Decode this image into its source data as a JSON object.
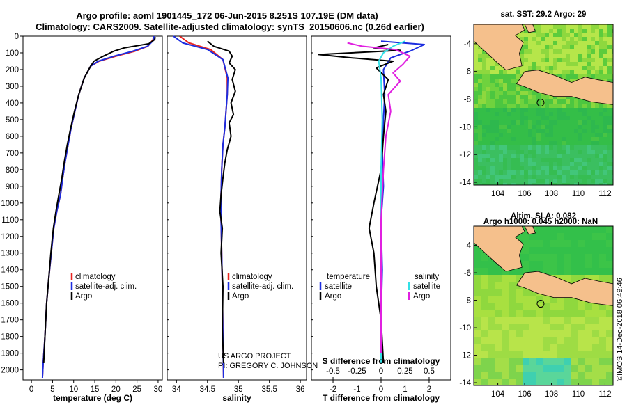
{
  "title_line1": "Argo profile: aoml 1901445_172 06-Jun-2015 8.251S 107.19E (DM data)",
  "title_line2": "Climatology: CARS2009. Satellite-adjusted climatology: synTS_20150606.nc (0.26d earlier)",
  "credit_project": "US ARGO PROJECT",
  "credit_pi": "PI: GREGORY C. JOHNSON",
  "footer": "©IMOS 14-Dec-2018 06:49:46",
  "colors": {
    "climatology": "#e8231f",
    "satellite_adj": "#1c2de0",
    "argo": "#000000",
    "salinity_sat": "#33e0e6",
    "salinity_argo": "#e020e0",
    "land": "#f5c08c",
    "sea_green": "#33c24a",
    "sea_yellow": "#b6e64a",
    "sea_cyan": "#3fd0b0"
  },
  "chart_data": [
    {
      "type": "line",
      "panel": "temperature",
      "xlabel": "temperature (deg C)",
      "ylabel": "",
      "xlim": [
        -2,
        31
      ],
      "ylim": [
        2060,
        0
      ],
      "x_ticks": [
        0,
        5,
        10,
        15,
        20,
        25,
        30
      ],
      "y_ticks": [
        0,
        100,
        200,
        300,
        400,
        500,
        600,
        700,
        800,
        900,
        1000,
        1100,
        1200,
        1300,
        1400,
        1500,
        1600,
        1700,
        1800,
        1900,
        2000
      ],
      "legend": [
        "climatology",
        "satellite-adj. clim.",
        "Argo"
      ],
      "series": [
        {
          "name": "climatology",
          "color": "#e8231f",
          "x": [
            28.9,
            28.8,
            27.6,
            24.5,
            20.0,
            16.0,
            14.0,
            12.5,
            11.2,
            10.3,
            9.4,
            8.7,
            8.0,
            7.4,
            6.9,
            6.0,
            5.3,
            4.7,
            4.1,
            3.6,
            3.2,
            2.8,
            2.6
          ],
          "y": [
            0,
            20,
            60,
            90,
            120,
            150,
            180,
            250,
            350,
            450,
            550,
            650,
            750,
            850,
            950,
            1050,
            1150,
            1300,
            1450,
            1600,
            1800,
            1950,
            2050
          ]
        },
        {
          "name": "satellite-adj. clim.",
          "color": "#1c2de0",
          "x": [
            29.0,
            28.9,
            27.5,
            24.0,
            19.5,
            15.8,
            14.0,
            12.5,
            11.2,
            10.3,
            9.4,
            8.7,
            8.0,
            7.4,
            6.9,
            6.0,
            5.3,
            4.7,
            4.1,
            3.6,
            3.2,
            2.8,
            2.6
          ],
          "y": [
            0,
            25,
            60,
            90,
            120,
            150,
            180,
            250,
            350,
            450,
            550,
            650,
            750,
            850,
            950,
            1050,
            1150,
            1300,
            1450,
            1600,
            1800,
            1950,
            2050
          ]
        },
        {
          "name": "Argo",
          "color": "#000000",
          "x": [
            29.3,
            29.2,
            27.8,
            22.0,
            19.5,
            17.0,
            14.8,
            14.0,
            12.5,
            11.2,
            10.2,
            9.3,
            8.5,
            7.8,
            7.2,
            6.5,
            5.8,
            5.2,
            4.6,
            4.1,
            3.6,
            3.2,
            2.9
          ],
          "y": [
            5,
            20,
            45,
            70,
            90,
            120,
            150,
            180,
            250,
            350,
            450,
            550,
            650,
            750,
            850,
            950,
            1050,
            1150,
            1300,
            1450,
            1600,
            1800,
            1960
          ]
        }
      ]
    },
    {
      "type": "line",
      "panel": "salinity",
      "xlabel": "salinity",
      "xlim": [
        33.85,
        36.1
      ],
      "ylim": [
        2060,
        0
      ],
      "x_ticks": [
        34,
        34.5,
        35,
        35.5,
        36
      ],
      "legend": [
        "climatology",
        "satellite-adj. clim.",
        "Argo"
      ],
      "series": [
        {
          "name": "climatology",
          "color": "#e8231f",
          "x": [
            34.05,
            34.2,
            34.55,
            34.75,
            34.82,
            34.82,
            34.8,
            34.78,
            34.75,
            34.73,
            34.72,
            34.72,
            34.73,
            34.74,
            34.75,
            34.76
          ],
          "y": [
            0,
            40,
            80,
            140,
            250,
            350,
            450,
            550,
            650,
            800,
            950,
            1100,
            1300,
            1500,
            1800,
            2050
          ]
        },
        {
          "name": "satellite-adj. clim.",
          "color": "#1c2de0",
          "x": [
            33.95,
            34.1,
            34.5,
            34.75,
            34.83,
            34.82,
            34.8,
            34.78,
            34.75,
            34.73,
            34.72,
            34.72,
            34.73,
            34.74,
            34.75,
            34.76
          ],
          "y": [
            0,
            40,
            80,
            140,
            250,
            350,
            450,
            550,
            650,
            800,
            950,
            1100,
            1300,
            1500,
            1800,
            2050
          ]
        },
        {
          "name": "Argo",
          "color": "#000000",
          "x": [
            34.5,
            34.6,
            34.85,
            34.9,
            34.85,
            34.95,
            34.9,
            34.95,
            34.88,
            34.92,
            34.85,
            34.88,
            34.82,
            34.78,
            34.75,
            34.72,
            34.7,
            34.74,
            34.72,
            34.75,
            34.74,
            34.76
          ],
          "y": [
            30,
            60,
            90,
            120,
            160,
            200,
            260,
            330,
            400,
            470,
            520,
            600,
            680,
            760,
            850,
            950,
            1050,
            1150,
            1300,
            1500,
            1750,
            1960
          ]
        }
      ]
    },
    {
      "type": "line",
      "panel": "difference",
      "xlabel": "T difference from climatology",
      "secondary_xlabel": "S difference from climatology",
      "xlim": [
        -2.9,
        2.9
      ],
      "ylim": [
        2060,
        0
      ],
      "x_ticks": [
        -2,
        -1,
        0,
        1,
        2
      ],
      "secondary_x_ticks": [
        "-0.5",
        "-0.25",
        "0",
        "0.25",
        "0.5"
      ],
      "legend_left_title": "temperature",
      "legend_right_title": "salinity",
      "legend_left": [
        "satellite",
        "Argo"
      ],
      "legend_right": [
        "satellite",
        "Argo"
      ],
      "series": [
        {
          "name": "temperature satellite",
          "color": "#1c2de0",
          "x": [
            0.0,
            1.8,
            1.2,
            0.4,
            0.1,
            0.15,
            0.1,
            0.05,
            0.1,
            0.0,
            0.05,
            0.0,
            0.0
          ],
          "y": [
            30,
            50,
            90,
            130,
            200,
            350,
            500,
            700,
            900,
            1100,
            1400,
            1700,
            1960
          ]
        },
        {
          "name": "temperature Argo",
          "color": "#000000",
          "x": [
            0.3,
            -0.3,
            0.8,
            -2.6,
            -1.2,
            0.5,
            -0.2,
            0.3,
            0.1,
            0.2,
            0.1,
            0.0,
            -0.3,
            -0.5,
            -0.3,
            -0.2,
            0.0,
            0.1
          ],
          "y": [
            50,
            70,
            85,
            110,
            130,
            150,
            190,
            260,
            350,
            450,
            600,
            800,
            1000,
            1150,
            1300,
            1500,
            1700,
            1960
          ]
        },
        {
          "name": "salinity satellite",
          "color": "#33e0e6",
          "x": [
            1.0,
            0.5,
            0.1,
            -0.1,
            0.0,
            0.05,
            0.0,
            0.0,
            0.0,
            0.0
          ],
          "y": [
            30,
            60,
            100,
            150,
            250,
            500,
            800,
            1100,
            1500,
            1960
          ]
        },
        {
          "name": "salinity Argo",
          "color": "#e020e0",
          "x": [
            -1.4,
            -0.8,
            0.6,
            1.2,
            0.9,
            0.5,
            0.8,
            0.3,
            0.4,
            0.2,
            0.1,
            0.0,
            0.0,
            0.0
          ],
          "y": [
            40,
            60,
            80,
            120,
            170,
            220,
            270,
            350,
            450,
            600,
            800,
            1100,
            1400,
            1900
          ]
        }
      ]
    },
    {
      "type": "heatmap",
      "panel": "sst_map",
      "title": "sat. SST: 29.2 Argo: 29",
      "xlim": [
        102.2,
        112.6
      ],
      "ylim": [
        -14.2,
        -2.6
      ],
      "x_ticks": [
        104,
        106,
        108,
        110,
        112
      ],
      "y_ticks": [
        -4,
        -6,
        -8,
        -10,
        -12,
        -14
      ],
      "argo_position": {
        "lon": 107.19,
        "lat": -8.251
      }
    },
    {
      "type": "heatmap",
      "panel": "sla_map",
      "title": "Altim. SLA: 0.082",
      "subtitle": "Argo h1000: 0.045 h2000: NaN",
      "xlim": [
        102.2,
        112.6
      ],
      "ylim": [
        -14.2,
        -2.6
      ],
      "x_ticks": [
        104,
        106,
        108,
        110,
        112
      ],
      "y_ticks": [
        -4,
        -6,
        -8,
        -10,
        -12,
        -14
      ],
      "argo_position": {
        "lon": 107.19,
        "lat": -8.251
      }
    }
  ]
}
